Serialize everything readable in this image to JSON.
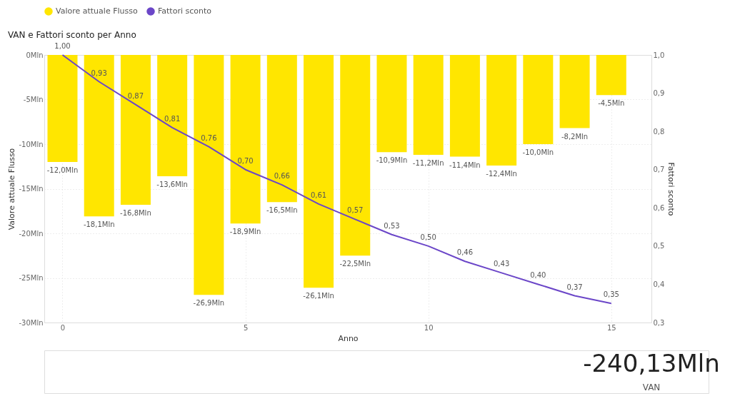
{
  "chart_data": [
    {
      "type": "bar",
      "title": "VAN e Fattori sconto per Anno",
      "xlabel": "Anno",
      "ylabel": "Valore attuale Flusso",
      "y2label": "Fattori sconto",
      "x": [
        0,
        1,
        2,
        3,
        4,
        5,
        6,
        7,
        8,
        9,
        10,
        11,
        12,
        13,
        14,
        15
      ],
      "series": [
        {
          "name": "Valore attuale Flusso",
          "type": "bar",
          "color": "#ffe600",
          "values": [
            -12.0,
            -18.1,
            -16.8,
            -13.6,
            -26.9,
            -18.9,
            -16.5,
            -26.1,
            -22.5,
            -10.9,
            -11.2,
            -11.4,
            -12.4,
            -10.0,
            -8.2,
            -4.5
          ],
          "value_labels": [
            "-12,0Mln",
            "-18,1Mln",
            "-16,8Mln",
            "-13,6Mln",
            "-26,9Mln",
            "-18,9Mln",
            "-16,5Mln",
            "-26,1Mln",
            "-22,5Mln",
            "-10,9Mln",
            "-11,2Mln",
            "-11,4Mln",
            "-12,4Mln",
            "-10,0Mln",
            "-8,2Mln",
            "-4,5Mln"
          ]
        },
        {
          "name": "Fattori sconto",
          "type": "line",
          "axis": "y2",
          "color": "#6b46c8",
          "values": [
            1.0,
            0.93,
            0.87,
            0.81,
            0.76,
            0.7,
            0.66,
            0.61,
            0.57,
            0.53,
            0.5,
            0.46,
            0.43,
            0.4,
            0.37,
            0.35
          ],
          "value_labels": [
            "1,00",
            "0,93",
            "0,87",
            "0,81",
            "0,76",
            "0,70",
            "0,66",
            "0,61",
            "0,57",
            "0,53",
            "0,50",
            "0,46",
            "0,43",
            "0,40",
            "0,37",
            "0,35"
          ]
        }
      ],
      "xlim": [
        -0.4,
        16
      ],
      "xticks": [
        0,
        5,
        10,
        15
      ],
      "ylim": [
        -30,
        0
      ],
      "yticks": [
        {
          "value": -30,
          "label": "-30Mln"
        },
        {
          "value": -25,
          "label": "-25Mln"
        },
        {
          "value": -20,
          "label": "-20Mln"
        },
        {
          "value": -15,
          "label": "-15Mln"
        },
        {
          "value": -10,
          "label": "-10Mln"
        },
        {
          "value": -5,
          "label": "-5Mln"
        },
        {
          "value": 0,
          "label": "0Mln"
        }
      ],
      "y2lim": [
        0.3,
        1.0
      ],
      "y2ticks": [
        {
          "value": 0.3,
          "label": "0,3"
        },
        {
          "value": 0.4,
          "label": "0,4"
        },
        {
          "value": 0.5,
          "label": "0,5"
        },
        {
          "value": 0.6,
          "label": "0,6"
        },
        {
          "value": 0.7,
          "label": "0,7"
        },
        {
          "value": 0.8,
          "label": "0,8"
        },
        {
          "value": 0.9,
          "label": "0,9"
        },
        {
          "value": 1.0,
          "label": "1,0"
        }
      ],
      "grid": true,
      "legend": "top left",
      "marker": "none",
      "line_style": "solid"
    },
    {
      "type": "other",
      "annotations": [
        "-240,13Mln",
        "VAN"
      ]
    }
  ]
}
